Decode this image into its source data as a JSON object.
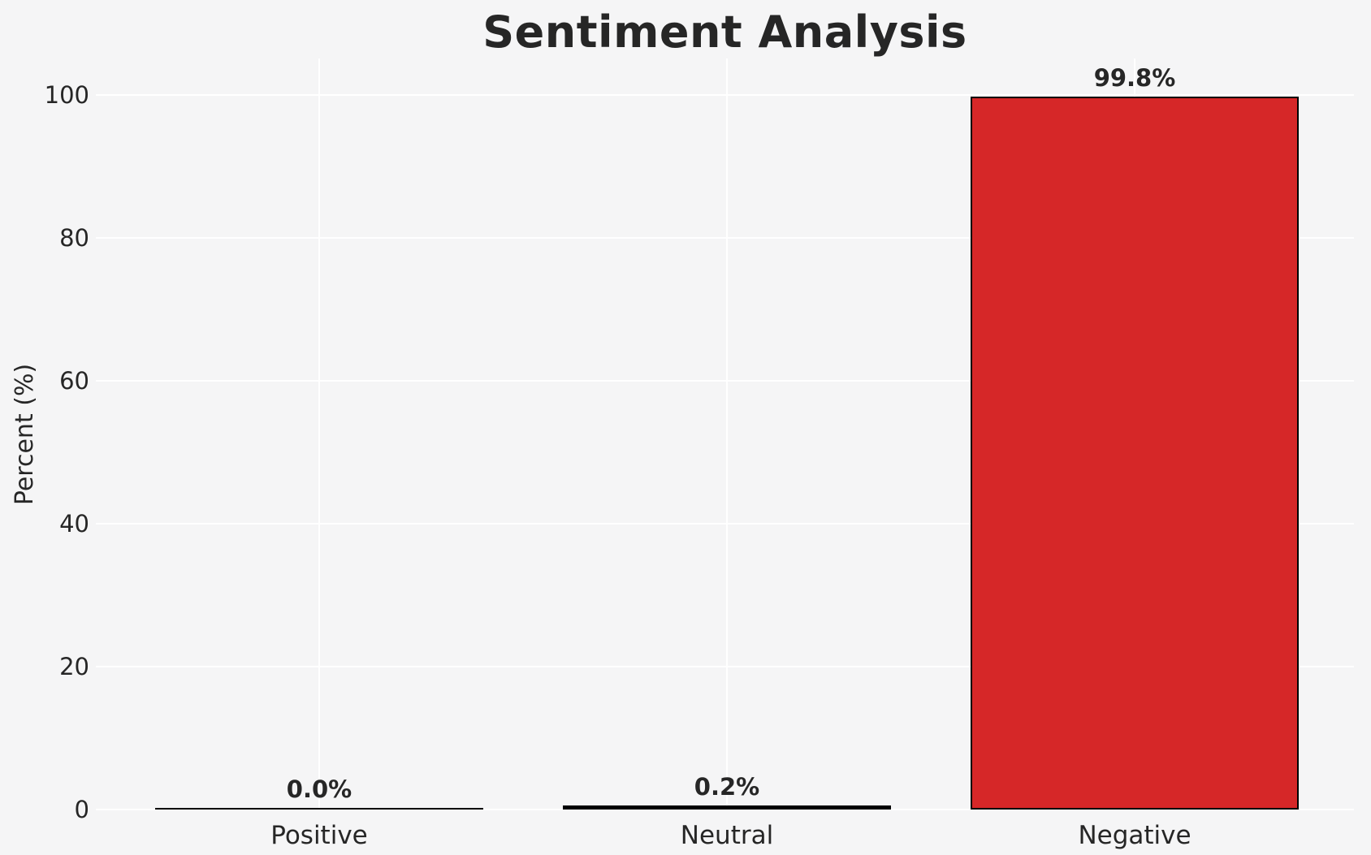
{
  "chart_data": {
    "type": "bar",
    "title": "Sentiment Analysis",
    "ylabel": "Percent (%)",
    "xlabel": "",
    "categories": [
      "Positive",
      "Neutral",
      "Negative"
    ],
    "values": [
      0.0,
      0.2,
      99.8
    ],
    "value_labels": [
      "0.0%",
      "0.2%",
      "99.8%"
    ],
    "yticks": [
      0,
      20,
      40,
      60,
      80,
      100
    ],
    "ylim": [
      0,
      105
    ],
    "grid": "on",
    "legend": "none",
    "colors": {
      "background": "#f5f5f6",
      "gridline": "#ffffff",
      "bar_fill": "#d62728",
      "bar_edge": "#000000",
      "text": "#262626"
    }
  }
}
